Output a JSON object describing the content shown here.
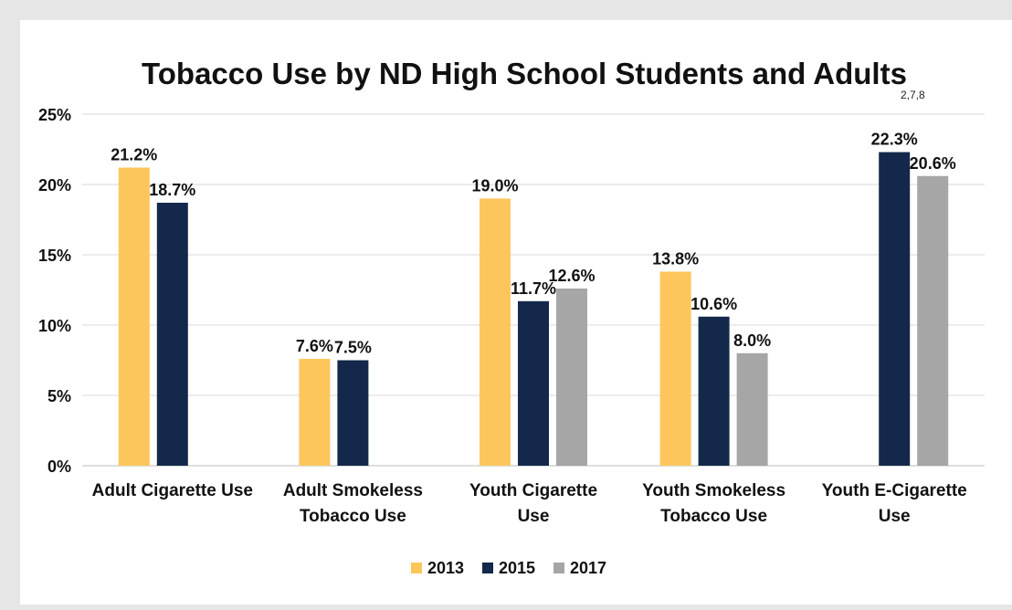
{
  "chart_data": {
    "type": "bar",
    "title": "Tobacco Use by ND High School Students and Adults",
    "title_superscript": "2,7,8",
    "categories": [
      [
        "Adult Cigarette Use"
      ],
      [
        "Adult Smokeless",
        "Tobacco Use"
      ],
      [
        "Youth Cigarette",
        "Use"
      ],
      [
        "Youth Smokeless",
        "Tobacco Use"
      ],
      [
        "Youth E-Cigarette",
        "Use"
      ]
    ],
    "series": [
      {
        "name": "2013",
        "color": "#fdc65c",
        "values": [
          21.2,
          7.6,
          19.0,
          13.8,
          null
        ]
      },
      {
        "name": "2015",
        "color": "#13284a",
        "values": [
          18.7,
          7.5,
          11.7,
          10.6,
          22.3
        ]
      },
      {
        "name": "2017",
        "color": "#a6a6a6",
        "values": [
          null,
          null,
          12.6,
          8.0,
          20.6
        ]
      }
    ],
    "data_labels": [
      [
        "21.2%",
        "7.6%",
        "19.0%",
        "13.8%",
        null
      ],
      [
        "18.7%",
        "7.5%",
        "11.7%",
        "10.6%",
        "22.3%"
      ],
      [
        null,
        null,
        "12.6%",
        "8.0%",
        "20.6%"
      ]
    ],
    "ylim": [
      0,
      25
    ],
    "yticks": [
      0,
      5,
      10,
      15,
      20,
      25
    ],
    "ytick_labels": [
      "0%",
      "5%",
      "10%",
      "15%",
      "20%",
      "25%"
    ],
    "xlabel": "",
    "ylabel": "",
    "grid": true,
    "legend_position": "bottom"
  }
}
